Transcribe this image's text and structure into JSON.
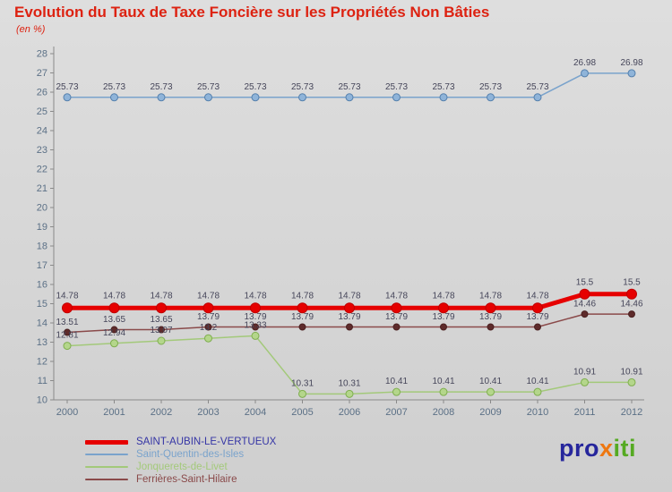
{
  "header": {
    "title": "Evolution du Taux de Taxe Foncière sur les Propriétés Non Bâties",
    "subtitle": "(en %)",
    "color": "#dd2211"
  },
  "chart_data": {
    "type": "line",
    "x": [
      2000,
      2001,
      2002,
      2003,
      2004,
      2005,
      2006,
      2007,
      2008,
      2009,
      2010,
      2011,
      2012
    ],
    "ylim": [
      10,
      28
    ],
    "ytick_step": 1,
    "grid": false,
    "legend_position": "bottom-left",
    "axis_color": "#8a8a8a",
    "tick_color": "#5b7086",
    "label_color": "#46465a",
    "title": "Evolution du Taux de Taxe Foncière sur les Propriétés Non Bâties",
    "ylabel": "en %",
    "series": [
      {
        "name": "SAINT-AUBIN-LE-VERTUEUX",
        "color": "#e60000",
        "line_width": 5,
        "marker_fill": "#e60000",
        "marker_stroke": "#c00000",
        "marker_radius": 5.5,
        "values": [
          14.78,
          14.78,
          14.78,
          14.78,
          14.78,
          14.78,
          14.78,
          14.78,
          14.78,
          14.78,
          14.78,
          15.5,
          15.5
        ]
      },
      {
        "name": "Saint-Quentin-des-Isles",
        "color": "#7aa3cc",
        "line_width": 1.5,
        "marker_fill": "#8fb4d9",
        "marker_stroke": "#5580ad",
        "marker_radius": 4,
        "values": [
          25.73,
          25.73,
          25.73,
          25.73,
          25.73,
          25.73,
          25.73,
          25.73,
          25.73,
          25.73,
          25.73,
          26.98,
          26.98
        ]
      },
      {
        "name": "Jonquerets-de-Livet",
        "color": "#a3c97a",
        "line_width": 1.5,
        "marker_fill": "#b4d68b",
        "marker_stroke": "#7fae4f",
        "marker_radius": 4,
        "values": [
          12.81,
          12.94,
          13.07,
          13.2,
          13.33,
          10.31,
          10.31,
          10.41,
          10.41,
          10.41,
          10.41,
          10.91,
          10.91
        ]
      },
      {
        "name": "Ferrières-Saint-Hilaire",
        "color": "#8a4a4a",
        "line_width": 1.5,
        "marker_fill": "#5e2b2b",
        "marker_stroke": "#4a2020",
        "marker_radius": 3.5,
        "values": [
          13.51,
          13.65,
          13.65,
          13.79,
          13.79,
          13.79,
          13.79,
          13.79,
          13.79,
          13.79,
          13.79,
          14.46,
          14.46
        ]
      }
    ]
  },
  "legend": {
    "items": [
      {
        "label": "SAINT-AUBIN-LE-VERTUEUX",
        "color": "#e60000",
        "text_color": "#3535a5",
        "thick": true
      },
      {
        "label": "Saint-Quentin-des-Isles",
        "color": "#7aa3cc",
        "text_color": "#7aa3cc",
        "thick": false
      },
      {
        "label": "Jonquerets-de-Livet",
        "color": "#a3c97a",
        "text_color": "#a3c97a",
        "thick": false
      },
      {
        "label": "Ferrières-Saint-Hilaire",
        "color": "#8a4a4a",
        "text_color": "#8a4a4a",
        "thick": false
      }
    ]
  },
  "logo": {
    "parts": [
      {
        "text": "pro",
        "color": "#26269c"
      },
      {
        "text": "x",
        "color": "#ee7711"
      },
      {
        "text": "iti",
        "color": "#55aa22"
      }
    ]
  }
}
